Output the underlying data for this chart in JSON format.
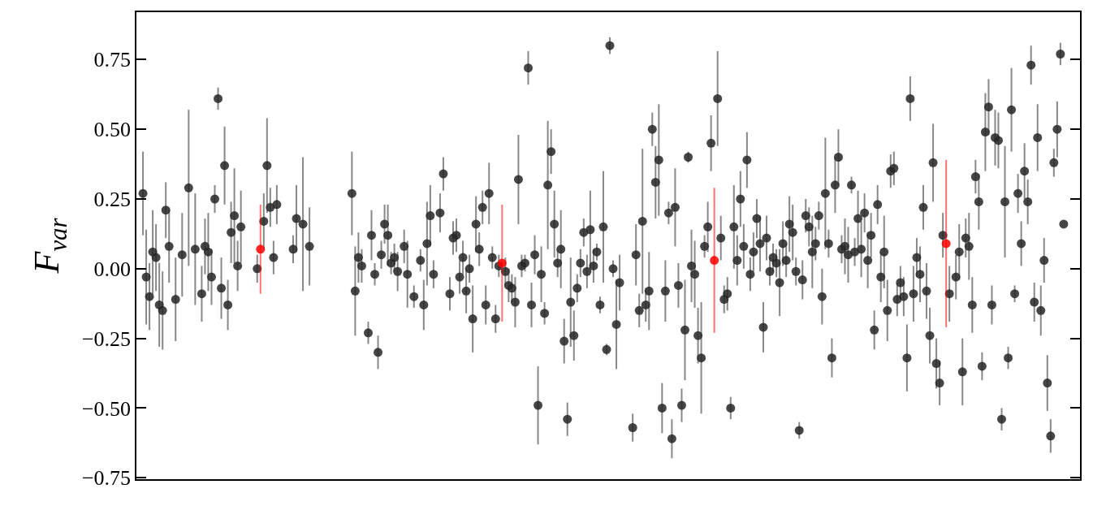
{
  "chart_data": {
    "type": "scatter",
    "ylabel": "F$_{var}$",
    "marker": "circle",
    "tick_labels": "y",
    "ylim": [
      -0.755,
      0.92
    ],
    "yticks": [
      {
        "value": -0.75,
        "label": "−0.75"
      },
      {
        "value": -0.5,
        "label": "−0.50"
      },
      {
        "value": -0.25,
        "label": "−0.25"
      },
      {
        "value": 0,
        "label": "0.00"
      },
      {
        "value": 0.25,
        "label": "0.25"
      },
      {
        "value": 0.5,
        "label": "0.50"
      },
      {
        "value": 0.75,
        "label": "0.75"
      }
    ],
    "categories": [
      null,
      null,
      null,
      null,
      null,
      null,
      null,
      null,
      null,
      null,
      null,
      null,
      null,
      null,
      null,
      null,
      null,
      null,
      null,
      null,
      null,
      null,
      null,
      null,
      null,
      null,
      null,
      null,
      null,
      null,
      null,
      null,
      null,
      null,
      null,
      null,
      null,
      null,
      null,
      null,
      null,
      null,
      null,
      null,
      null,
      null,
      null,
      null,
      null,
      null,
      null,
      null,
      null,
      null,
      null,
      null,
      null,
      null,
      null,
      null,
      null,
      null,
      null,
      null,
      null,
      null,
      null,
      null,
      null,
      null,
      null,
      null,
      null,
      null,
      null,
      null,
      null,
      null,
      null,
      null,
      null,
      null,
      null,
      null,
      null,
      null,
      null,
      null,
      null,
      null,
      null,
      null,
      null,
      null,
      null,
      null,
      null,
      null,
      null,
      null,
      null,
      null,
      null,
      null,
      null,
      null,
      null,
      null,
      null,
      null,
      null,
      null,
      null,
      null,
      null,
      null,
      null,
      null,
      null,
      null,
      null,
      null,
      null,
      null,
      null,
      null,
      null,
      null,
      null,
      null,
      null,
      null,
      null,
      null,
      null,
      null,
      null,
      null,
      null,
      null,
      null,
      null,
      null,
      null,
      null,
      null,
      null,
      null,
      null,
      null,
      null,
      null,
      null,
      null,
      null,
      null,
      null,
      null,
      null,
      null,
      null,
      null,
      null,
      null,
      null,
      null,
      null,
      null,
      null,
      null,
      null,
      null,
      null,
      null,
      null,
      null,
      null,
      null,
      null,
      null,
      null,
      null,
      null,
      null,
      null,
      null,
      null,
      null,
      null,
      null,
      null,
      null,
      null,
      null,
      null,
      null,
      null,
      null,
      null,
      null,
      null,
      null,
      null,
      null,
      null,
      null,
      null,
      null,
      null,
      null,
      null,
      null,
      null,
      null,
      null,
      null,
      null,
      null,
      null,
      null,
      null,
      null,
      null,
      null,
      null,
      null,
      null,
      null,
      null,
      null,
      null,
      null,
      null,
      null,
      null,
      null,
      null,
      null,
      null,
      null,
      null,
      null,
      null,
      null,
      null,
      null,
      null,
      null,
      null,
      null,
      null,
      null,
      null,
      null,
      null,
      null,
      null,
      null,
      null,
      null,
      null,
      null,
      null,
      null,
      null,
      null,
      null,
      null,
      null,
      null,
      null,
      null,
      null,
      null,
      null,
      null,
      null,
      null,
      null,
      null,
      null,
      null,
      null,
      null,
      null,
      null,
      null,
      null,
      null,
      null
    ],
    "series": [
      {
        "color": "#262626",
        "values": [
          null,
          null,
          0.27,
          -0.03,
          -0.1,
          0.06,
          0.04,
          -0.13,
          -0.15,
          0.21,
          0.08,
          null,
          -0.11,
          null,
          0.05,
          null,
          0.29,
          null,
          0.07,
          null,
          -0.09,
          0.08,
          0.06,
          -0.03,
          0.25,
          0.61,
          -0.07,
          0.37,
          -0.13,
          0.13,
          0.19,
          0.01,
          0.15,
          null,
          null,
          null,
          null,
          0.0,
          null,
          0.17,
          0.37,
          0.22,
          0.04,
          0.23,
          null,
          null,
          null,
          null,
          0.07,
          0.18,
          null,
          0.16,
          null,
          0.08,
          null,
          null,
          null,
          null,
          null,
          null,
          null,
          null,
          null,
          null,
          null,
          null,
          0.27,
          -0.08,
          0.04,
          0.01,
          null,
          -0.23,
          0.12,
          -0.02,
          -0.3,
          0.05,
          0.16,
          0.12,
          0.02,
          0.04,
          -0.01,
          null,
          0.08,
          -0.02,
          null,
          -0.1,
          null,
          0.03,
          -0.13,
          0.09,
          0.19,
          -0.02,
          null,
          0.2,
          0.34,
          null,
          -0.09,
          0.11,
          0.12,
          -0.03,
          0.04,
          -0.08,
          0.0,
          -0.18,
          0.16,
          0.07,
          0.22,
          -0.13,
          0.27,
          0.04,
          -0.18,
          0.01,
          null,
          -0.01,
          -0.06,
          -0.07,
          -0.12,
          0.32,
          0.01,
          0.02,
          0.72,
          -0.13,
          0.05,
          -0.49,
          -0.02,
          -0.16,
          0.3,
          0.42,
          0.16,
          0.02,
          0.07,
          -0.26,
          -0.54,
          -0.12,
          -0.24,
          -0.07,
          0.02,
          0.13,
          -0.01,
          0.14,
          0.01,
          0.06,
          -0.13,
          0.15,
          -0.29,
          0.8,
          0.0,
          -0.2,
          -0.05,
          null,
          null,
          null,
          -0.57,
          0.05,
          -0.15,
          0.17,
          -0.13,
          -0.08,
          0.5,
          0.31,
          0.39,
          -0.5,
          -0.08,
          0.2,
          -0.61,
          0.22,
          -0.06,
          -0.49,
          -0.22,
          0.4,
          0.01,
          -0.02,
          -0.24,
          -0.32,
          0.08,
          0.15,
          0.45,
          null,
          0.61,
          0.11,
          -0.11,
          -0.09,
          -0.5,
          0.15,
          0.03,
          0.25,
          0.08,
          0.39,
          -0.02,
          0.06,
          0.18,
          0.09,
          -0.21,
          0.11,
          -0.01,
          0.04,
          0.02,
          -0.05,
          0.09,
          0.03,
          0.16,
          0.13,
          -0.01,
          -0.58,
          -0.04,
          0.19,
          0.15,
          0.06,
          0.09,
          0.19,
          -0.1,
          0.27,
          0.09,
          -0.32,
          0.3,
          0.4,
          0.07,
          0.08,
          0.05,
          0.3,
          0.06,
          0.18,
          0.07,
          0.2,
          0.03,
          0.12,
          -0.22,
          0.23,
          -0.03,
          0.06,
          -0.15,
          0.35,
          0.36,
          -0.11,
          -0.05,
          -0.1,
          -0.32,
          0.61,
          -0.09,
          0.04,
          -0.02,
          0.22,
          -0.08,
          -0.24,
          0.38,
          -0.34,
          -0.41,
          0.12,
          null,
          -0.09,
          null,
          -0.03,
          0.06,
          -0.37,
          0.11,
          0.08,
          -0.13,
          0.33,
          0.24,
          -0.35,
          0.49,
          0.58,
          -0.13,
          0.47,
          0.46,
          -0.54,
          0.24,
          -0.32,
          0.57,
          -0.09,
          0.27,
          0.09,
          0.35,
          0.24,
          0.73,
          -0.12,
          0.47,
          -0.15,
          0.03,
          -0.41,
          -0.6,
          0.38,
          0.5,
          0.77,
          0.16,
          null,
          null,
          null,
          null,
          null
        ],
        "errors": [
          null,
          null,
          0.15,
          0.17,
          0.12,
          0.15,
          0.12,
          0.15,
          0.14,
          0.1,
          0.13,
          null,
          0.15,
          null,
          0.15,
          null,
          0.28,
          null,
          0.2,
          null,
          0.1,
          0.1,
          0.14,
          0.1,
          0.05,
          0.04,
          0.11,
          0.14,
          0.09,
          0.11,
          0.17,
          0.09,
          0.13,
          null,
          null,
          null,
          null,
          0.05,
          null,
          0.1,
          0.17,
          0.07,
          0.06,
          0.07,
          null,
          null,
          null,
          null,
          0.05,
          0.12,
          null,
          0.24,
          null,
          0.14,
          null,
          null,
          null,
          null,
          null,
          null,
          null,
          null,
          null,
          null,
          null,
          null,
          0.15,
          0.16,
          0.09,
          0.06,
          null,
          0.04,
          0.09,
          0.04,
          0.06,
          0.05,
          0.07,
          0.11,
          0.04,
          0.05,
          0.07,
          null,
          0.06,
          0.12,
          null,
          0.04,
          null,
          0.04,
          0.09,
          0.15,
          0.11,
          0.05,
          null,
          0.07,
          0.06,
          null,
          0.06,
          0.06,
          0.06,
          0.06,
          0.06,
          0.08,
          0.05,
          0.12,
          0.1,
          0.06,
          0.06,
          0.07,
          0.11,
          0.04,
          0.05,
          0.04,
          null,
          0.05,
          0.06,
          0.05,
          0.09,
          0.16,
          0.04,
          0.03,
          0.06,
          0.08,
          0.07,
          0.14,
          0.1,
          0.04,
          0.23,
          0.08,
          0.12,
          0.05,
          0.14,
          0.08,
          0.06,
          0.16,
          0.09,
          0.05,
          0.05,
          0.05,
          0.06,
          0.14,
          0.06,
          0.03,
          0.03,
          0.2,
          0.02,
          0.03,
          0.03,
          0.16,
          0.1,
          null,
          null,
          null,
          0.05,
          0.11,
          0.06,
          0.26,
          0.06,
          0.14,
          0.06,
          0.13,
          0.2,
          0.09,
          0.11,
          0.04,
          0.07,
          0.14,
          0.08,
          0.06,
          0.18,
          0.02,
          0.13,
          0.12,
          0.1,
          0.2,
          0.04,
          0.09,
          0.1,
          null,
          0.17,
          0.08,
          0.05,
          0.06,
          0.04,
          0.15,
          0.09,
          0.1,
          0.08,
          0.1,
          0.06,
          0.07,
          0.07,
          0.1,
          0.09,
          0.08,
          0.05,
          0.05,
          0.05,
          0.12,
          0.08,
          0.06,
          0.1,
          0.1,
          0.05,
          0.03,
          0.07,
          0.06,
          0.07,
          0.13,
          0.06,
          0.05,
          0.1,
          0.2,
          0.05,
          0.07,
          0.1,
          0.1,
          0.05,
          0.1,
          0.1,
          0.03,
          0.05,
          0.1,
          0.1,
          0.07,
          0.1,
          0.08,
          0.07,
          0.07,
          0.09,
          0.13,
          0.11,
          0.06,
          0.06,
          0.06,
          0.06,
          0.07,
          0.12,
          0.08,
          0.1,
          0.07,
          0.1,
          0.08,
          0.1,
          0.1,
          0.14,
          0.09,
          0.08,
          0.08,
          null,
          0.1,
          null,
          0.08,
          0.1,
          0.12,
          0.07,
          0.12,
          0.1,
          0.06,
          0.1,
          0.05,
          0.14,
          0.1,
          0.07,
          0.1,
          0.1,
          0.04,
          0.2,
          0.04,
          0.15,
          0.03,
          0.07,
          0.08,
          0.1,
          0.08,
          0.07,
          0.07,
          0.12,
          0.09,
          0.08,
          0.1,
          0.06,
          0.05,
          0.1,
          0.04,
          null,
          null,
          null,
          null,
          null,
          null
        ]
      },
      {
        "color": "#ff0000",
        "values": [
          null,
          null,
          null,
          null,
          null,
          null,
          null,
          null,
          null,
          null,
          null,
          null,
          null,
          null,
          null,
          null,
          null,
          null,
          null,
          null,
          null,
          null,
          null,
          null,
          null,
          null,
          null,
          null,
          null,
          null,
          null,
          null,
          null,
          null,
          null,
          null,
          null,
          null,
          0.07,
          null,
          null,
          null,
          null,
          null,
          null,
          null,
          null,
          null,
          null,
          null,
          null,
          null,
          null,
          null,
          null,
          null,
          null,
          null,
          null,
          null,
          null,
          null,
          null,
          null,
          null,
          null,
          null,
          null,
          null,
          null,
          null,
          null,
          null,
          null,
          null,
          null,
          null,
          null,
          null,
          null,
          null,
          null,
          null,
          null,
          null,
          null,
          null,
          null,
          null,
          null,
          null,
          null,
          null,
          null,
          null,
          null,
          null,
          null,
          null,
          null,
          null,
          null,
          null,
          null,
          null,
          null,
          null,
          null,
          null,
          null,
          null,
          null,
          0.02,
          null,
          null,
          null,
          null,
          null,
          null,
          null,
          null,
          null,
          null,
          null,
          null,
          null,
          null,
          null,
          null,
          null,
          null,
          null,
          null,
          null,
          null,
          null,
          null,
          null,
          null,
          null,
          null,
          null,
          null,
          null,
          null,
          null,
          null,
          null,
          null,
          null,
          null,
          null,
          null,
          null,
          null,
          null,
          null,
          null,
          null,
          null,
          null,
          null,
          null,
          null,
          null,
          null,
          null,
          null,
          null,
          null,
          null,
          null,
          null,
          null,
          null,
          null,
          null,
          0.03,
          null,
          null,
          null,
          null,
          null,
          null,
          null,
          null,
          null,
          null,
          null,
          null,
          null,
          null,
          null,
          null,
          null,
          null,
          null,
          null,
          null,
          null,
          null,
          null,
          null,
          null,
          null,
          null,
          null,
          null,
          null,
          null,
          null,
          null,
          null,
          null,
          null,
          null,
          null,
          null,
          null,
          null,
          null,
          null,
          null,
          null,
          null,
          null,
          null,
          null,
          null,
          null,
          null,
          null,
          null,
          null,
          null,
          null,
          null,
          null,
          null,
          null,
          null,
          null,
          null,
          null,
          null,
          null,
          null,
          null,
          0.09,
          null,
          null,
          null,
          null,
          null,
          null,
          null,
          null,
          null,
          null,
          null,
          null,
          null,
          null,
          null,
          null,
          null,
          null,
          null,
          null,
          null,
          null,
          null,
          null,
          null,
          null,
          null,
          null,
          null,
          null,
          null,
          null,
          null,
          null,
          null,
          null,
          null,
          null,
          null,
          null,
          null
        ],
        "errors": [
          null,
          null,
          null,
          null,
          null,
          null,
          null,
          null,
          null,
          null,
          null,
          null,
          null,
          null,
          null,
          null,
          null,
          null,
          null,
          null,
          null,
          null,
          null,
          null,
          null,
          null,
          null,
          null,
          null,
          null,
          null,
          null,
          null,
          null,
          null,
          null,
          null,
          null,
          0.16,
          null,
          null,
          null,
          null,
          null,
          null,
          null,
          null,
          null,
          null,
          null,
          null,
          null,
          null,
          null,
          null,
          null,
          null,
          null,
          null,
          null,
          null,
          null,
          null,
          null,
          null,
          null,
          null,
          null,
          null,
          null,
          null,
          null,
          null,
          null,
          null,
          null,
          null,
          null,
          null,
          null,
          null,
          null,
          null,
          null,
          null,
          null,
          null,
          null,
          null,
          null,
          null,
          null,
          null,
          null,
          null,
          null,
          null,
          null,
          null,
          null,
          null,
          null,
          null,
          null,
          null,
          null,
          null,
          null,
          null,
          null,
          null,
          null,
          0.21,
          null,
          null,
          null,
          null,
          null,
          null,
          null,
          null,
          null,
          null,
          null,
          null,
          null,
          null,
          null,
          null,
          null,
          null,
          null,
          null,
          null,
          null,
          null,
          null,
          null,
          null,
          null,
          null,
          null,
          null,
          null,
          null,
          null,
          null,
          null,
          null,
          null,
          null,
          null,
          null,
          null,
          null,
          null,
          null,
          null,
          null,
          null,
          null,
          null,
          null,
          null,
          null,
          null,
          null,
          null,
          null,
          null,
          null,
          null,
          null,
          null,
          null,
          null,
          null,
          0.26,
          null,
          null,
          null,
          null,
          null,
          null,
          null,
          null,
          null,
          null,
          null,
          null,
          null,
          null,
          null,
          null,
          null,
          null,
          null,
          null,
          null,
          null,
          null,
          null,
          null,
          null,
          null,
          null,
          null,
          null,
          null,
          null,
          null,
          null,
          null,
          null,
          null,
          null,
          null,
          null,
          null,
          null,
          null,
          null,
          null,
          null,
          null,
          null,
          null,
          null,
          null,
          null,
          null,
          null,
          null,
          null,
          null,
          null,
          null,
          null,
          null,
          null,
          null,
          null,
          null,
          null,
          null,
          null,
          null,
          null,
          0.3,
          null,
          null,
          null,
          null,
          null,
          null,
          null,
          null,
          null,
          null,
          null,
          null,
          null,
          null,
          null,
          null,
          null,
          null,
          null,
          null,
          null,
          null,
          null,
          null,
          null,
          null,
          null,
          null,
          null,
          null,
          null,
          null,
          null,
          null,
          null,
          null,
          null,
          null,
          null,
          null,
          null
        ]
      }
    ]
  }
}
